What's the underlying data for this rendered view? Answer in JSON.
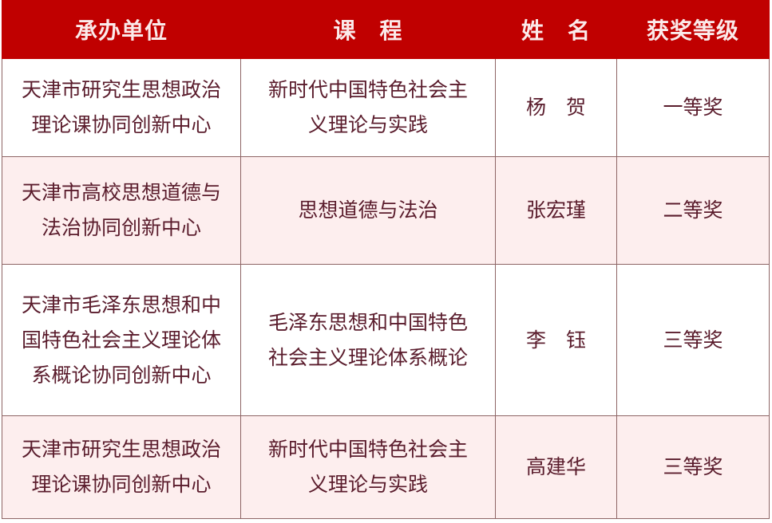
{
  "colors": {
    "header_bg": "#c00000",
    "text": "#5a1c2c",
    "alt_row_bg": "#fdeeee"
  },
  "headers": [
    "承办单位",
    "课　程",
    "姓　名",
    "获奖等级"
  ],
  "rows": [
    {
      "unit": [
        "天津市研究生思想政治",
        "理论课协同创新中心"
      ],
      "course": [
        "新时代中国特色社会主",
        "义理论与实践"
      ],
      "name": "杨　贺",
      "award": "一等奖"
    },
    {
      "unit": [
        "天津市高校思想道德与",
        "法治协同创新中心"
      ],
      "course": [
        "思想道德与法治"
      ],
      "name": "张宏瑾",
      "award": "二等奖"
    },
    {
      "unit": [
        "天津市毛泽东思想和中",
        "国特色社会主义理论体",
        "系概论协同创新中心"
      ],
      "course": [
        "毛泽东思想和中国特色",
        "社会主义理论体系概论"
      ],
      "name": "李　钰",
      "award": "三等奖"
    },
    {
      "unit": [
        "天津市研究生思想政治",
        "理论课协同创新中心"
      ],
      "course": [
        "新时代中国特色社会主",
        "义理论与实践"
      ],
      "name": "高建华",
      "award": "三等奖"
    }
  ]
}
